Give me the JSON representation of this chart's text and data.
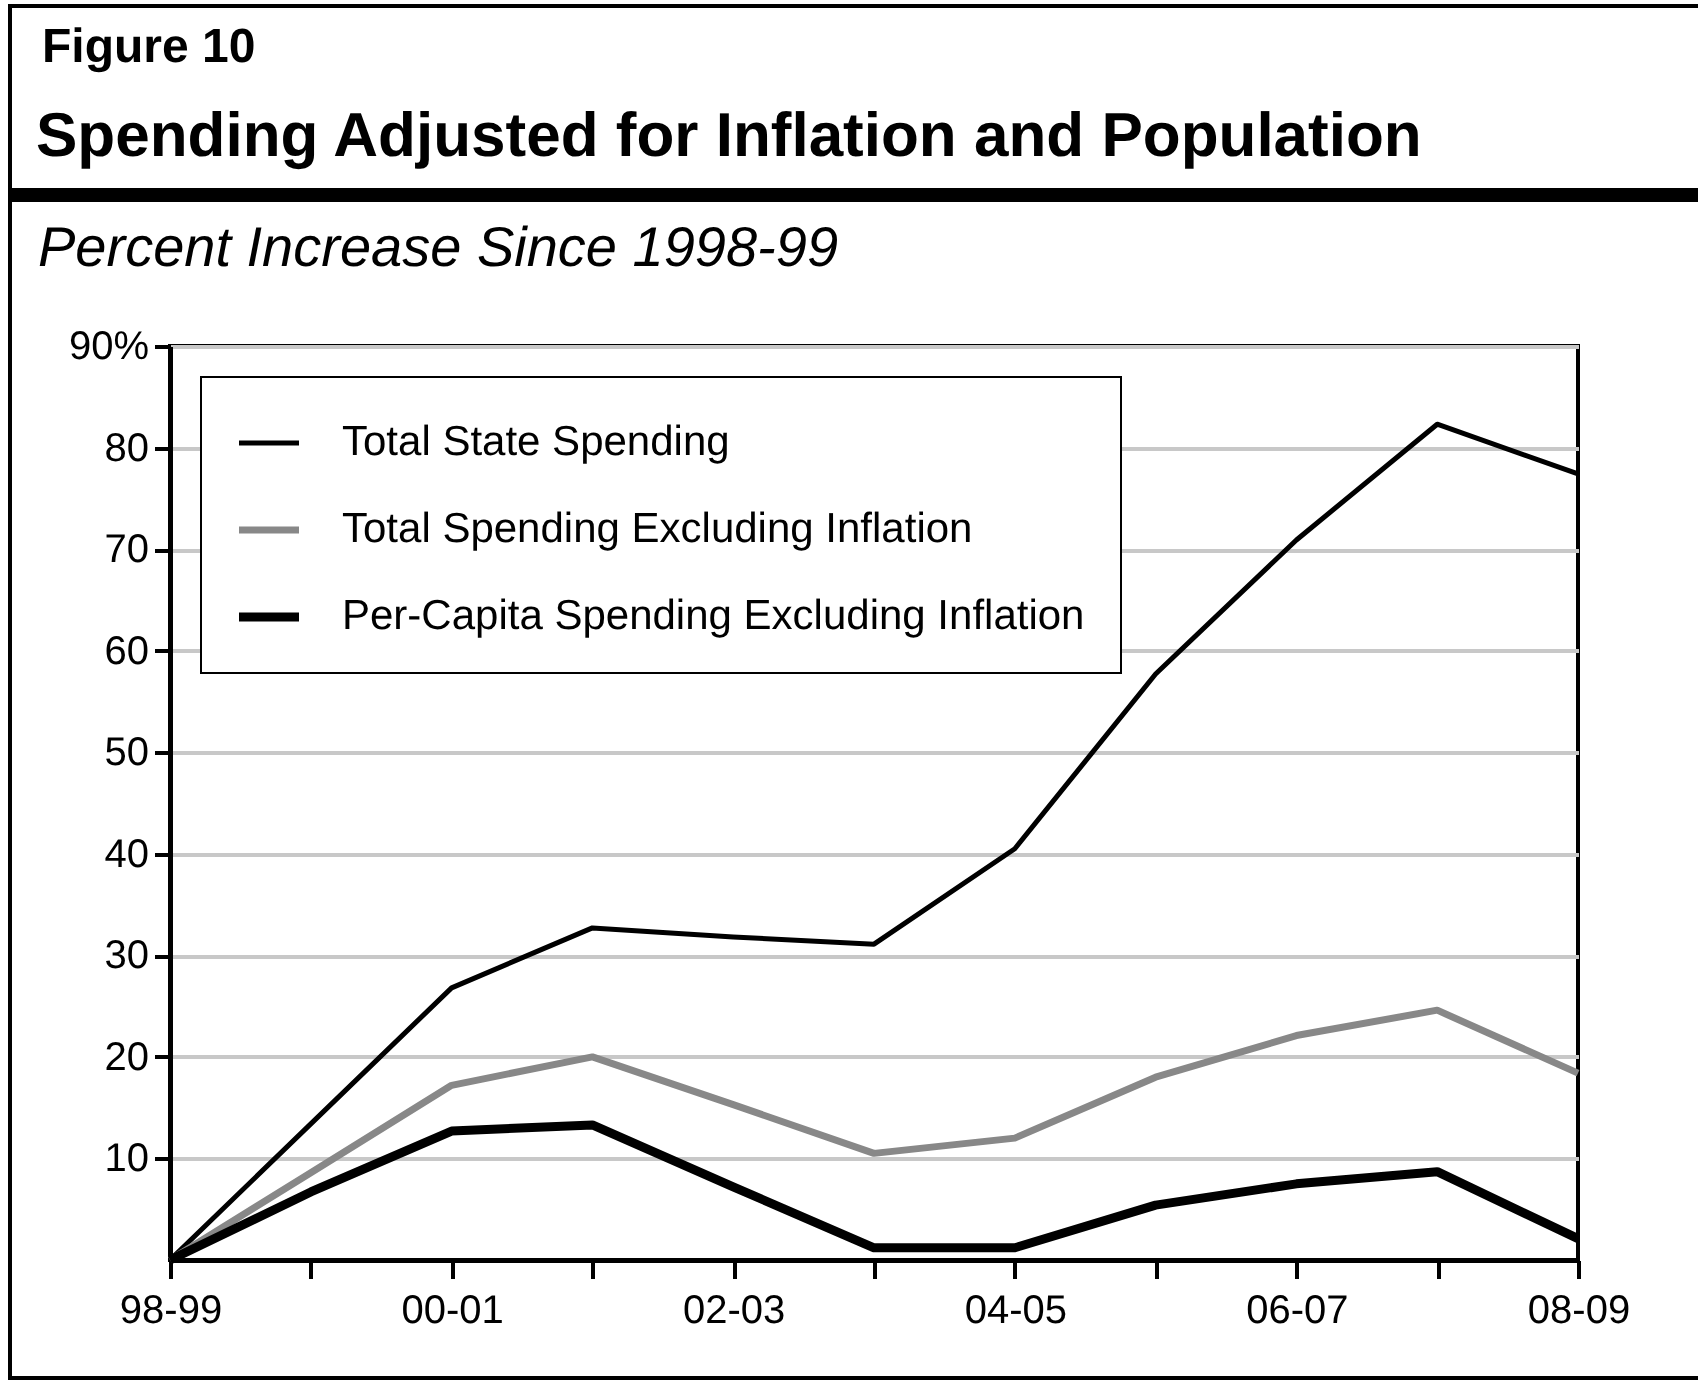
{
  "chart_data": {
    "type": "line",
    "title": "Spending Adjusted for Inflation and Population",
    "subtitle": "Percent Increase Since 1998-99",
    "annotations": [
      "Figure 10"
    ],
    "categories": [
      "98-99",
      null,
      "00-01",
      null,
      "02-03",
      null,
      "04-05",
      null,
      "06-07",
      null,
      "08-09"
    ],
    "series": [
      {
        "name": "Total State Spending",
        "color": "#000000",
        "values": [
          0,
          13.4,
          26.8,
          32.7,
          31.8,
          31.1,
          40.5,
          57.7,
          70.9,
          82.3,
          77.4
        ]
      },
      {
        "name": "Total Spending Excluding Inflation",
        "color": "#888888",
        "values": [
          0,
          8.6,
          17.2,
          20.0,
          15.3,
          10.5,
          12.0,
          18.0,
          22.1,
          24.6,
          18.4
        ]
      },
      {
        "name": "Per-Capita Spending Excluding Inflation",
        "color": "#000000",
        "values": [
          0,
          6.7,
          12.7,
          13.3,
          7.2,
          1.2,
          1.2,
          5.4,
          7.5,
          8.7,
          2.1
        ]
      }
    ],
    "ylim": [
      0,
      90
    ],
    "yticks": [
      10,
      20,
      30,
      40,
      50,
      60,
      70,
      80,
      {
        "value": 90,
        "label": "90%"
      }
    ],
    "grid": "y",
    "legend": "top left",
    "marker": "none",
    "line_style": "solid"
  }
}
